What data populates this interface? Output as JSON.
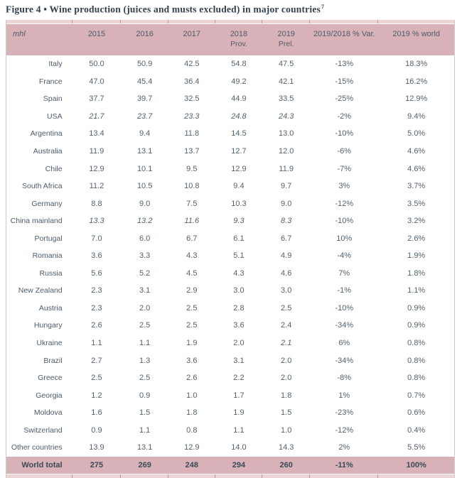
{
  "title": "Figure 4 • Wine production (juices and musts excluded) in major countries",
  "title_footnote_mark": "7",
  "table": {
    "unit_label": "mhl",
    "columns": [
      {
        "label": "2015",
        "sublabel": ""
      },
      {
        "label": "2016",
        "sublabel": ""
      },
      {
        "label": "2017",
        "sublabel": ""
      },
      {
        "label": "2018",
        "sublabel": "Prov."
      },
      {
        "label": "2019",
        "sublabel": "Prel."
      },
      {
        "label": "2019/2018 % Var.",
        "sublabel": ""
      },
      {
        "label": "2019 % world",
        "sublabel": ""
      }
    ],
    "rows": [
      {
        "country": "Italy",
        "values": [
          "50.0",
          "50.9",
          "42.5",
          "54.8",
          "47.5"
        ],
        "italics": [
          false,
          false,
          false,
          false,
          false
        ],
        "var": "-13%",
        "world": "18.3%"
      },
      {
        "country": "France",
        "values": [
          "47.0",
          "45.4",
          "36.4",
          "49.2",
          "42.1"
        ],
        "italics": [
          false,
          false,
          false,
          false,
          false
        ],
        "var": "-15%",
        "world": "16.2%"
      },
      {
        "country": "Spain",
        "values": [
          "37.7",
          "39.7",
          "32.5",
          "44.9",
          "33.5"
        ],
        "italics": [
          false,
          false,
          false,
          false,
          false
        ],
        "var": "-25%",
        "world": "12.9%"
      },
      {
        "country": "USA",
        "values": [
          "21.7",
          "23.7",
          "23.3",
          "24.8",
          "24.3"
        ],
        "italics": [
          true,
          true,
          true,
          true,
          true
        ],
        "var": "-2%",
        "world": "9.4%"
      },
      {
        "country": "Argentina",
        "values": [
          "13.4",
          "9.4",
          "11.8",
          "14.5",
          "13.0"
        ],
        "italics": [
          false,
          false,
          false,
          false,
          false
        ],
        "var": "-10%",
        "world": "5.0%"
      },
      {
        "country": "Australia",
        "values": [
          "11.9",
          "13.1",
          "13.7",
          "12.7",
          "12.0"
        ],
        "italics": [
          false,
          false,
          false,
          false,
          false
        ],
        "var": "-6%",
        "world": "4.6%"
      },
      {
        "country": "Chile",
        "values": [
          "12.9",
          "10.1",
          "9.5",
          "12.9",
          "11.9"
        ],
        "italics": [
          false,
          false,
          false,
          false,
          false
        ],
        "var": "-7%",
        "world": "4.6%"
      },
      {
        "country": "South Africa",
        "values": [
          "11.2",
          "10.5",
          "10.8",
          "9.4",
          "9.7"
        ],
        "italics": [
          false,
          false,
          false,
          false,
          false
        ],
        "var": "3%",
        "world": "3.7%"
      },
      {
        "country": "Germany",
        "values": [
          "8.8",
          "9.0",
          "7.5",
          "10.3",
          "9.0"
        ],
        "italics": [
          false,
          false,
          false,
          false,
          false
        ],
        "var": "-12%",
        "world": "3.5%"
      },
      {
        "country": "China mainland",
        "values": [
          "13.3",
          "13.2",
          "11.6",
          "9.3",
          "8.3"
        ],
        "italics": [
          true,
          true,
          true,
          true,
          true
        ],
        "var": "-10%",
        "world": "3.2%"
      },
      {
        "country": "Portugal",
        "values": [
          "7.0",
          "6.0",
          "6.7",
          "6.1",
          "6.7"
        ],
        "italics": [
          false,
          false,
          false,
          false,
          false
        ],
        "var": "10%",
        "world": "2.6%"
      },
      {
        "country": "Romania",
        "values": [
          "3.6",
          "3.3",
          "4.3",
          "5.1",
          "4.9"
        ],
        "italics": [
          false,
          false,
          false,
          false,
          false
        ],
        "var": "-4%",
        "world": "1.9%"
      },
      {
        "country": "Russia",
        "values": [
          "5.6",
          "5.2",
          "4.5",
          "4.3",
          "4.6"
        ],
        "italics": [
          false,
          false,
          false,
          false,
          false
        ],
        "var": "7%",
        "world": "1.8%"
      },
      {
        "country": "New Zealand",
        "values": [
          "2.3",
          "3.1",
          "2.9",
          "3.0",
          "3.0"
        ],
        "italics": [
          false,
          false,
          false,
          false,
          false
        ],
        "var": "-1%",
        "world": "1.1%"
      },
      {
        "country": "Austria",
        "values": [
          "2.3",
          "2.0",
          "2.5",
          "2.8",
          "2.5"
        ],
        "italics": [
          false,
          false,
          false,
          false,
          false
        ],
        "var": "-10%",
        "world": "0.9%"
      },
      {
        "country": "Hungary",
        "values": [
          "2.6",
          "2.5",
          "2.5",
          "3.6",
          "2.4"
        ],
        "italics": [
          false,
          false,
          false,
          false,
          false
        ],
        "var": "-34%",
        "world": "0.9%"
      },
      {
        "country": "Ukraine",
        "values": [
          "1.1",
          "1.1",
          "1.9",
          "2.0",
          "2.1"
        ],
        "italics": [
          false,
          false,
          false,
          false,
          true
        ],
        "var": "6%",
        "world": "0.8%"
      },
      {
        "country": "Brazil",
        "values": [
          "2.7",
          "1.3",
          "3.6",
          "3.1",
          "2.0"
        ],
        "italics": [
          false,
          false,
          false,
          false,
          false
        ],
        "var": "-34%",
        "world": "0.8%"
      },
      {
        "country": "Greece",
        "values": [
          "2.5",
          "2.5",
          "2.6",
          "2.2",
          "2.0"
        ],
        "italics": [
          false,
          false,
          false,
          false,
          false
        ],
        "var": "-8%",
        "world": "0.8%"
      },
      {
        "country": "Georgia",
        "values": [
          "1.2",
          "0.9",
          "1.0",
          "1.7",
          "1.8"
        ],
        "italics": [
          false,
          false,
          false,
          false,
          false
        ],
        "var": "1%",
        "world": "0.7%"
      },
      {
        "country": "Moldova",
        "values": [
          "1.6",
          "1.5",
          "1.8",
          "1.9",
          "1.5"
        ],
        "italics": [
          false,
          false,
          false,
          false,
          false
        ],
        "var": "-23%",
        "world": "0.6%"
      },
      {
        "country": "Switzerland",
        "values": [
          "0.9",
          "1.1",
          "0.8",
          "1.1",
          "1.0"
        ],
        "italics": [
          false,
          false,
          false,
          false,
          false
        ],
        "var": "-12%",
        "world": "0.4%"
      },
      {
        "country": "Other countries",
        "values": [
          "13.9",
          "13.1",
          "12.9",
          "14.0",
          "14.3"
        ],
        "italics": [
          false,
          false,
          false,
          false,
          false
        ],
        "var": "2%",
        "world": "5.5%"
      }
    ],
    "total": {
      "label": "World total",
      "values": [
        "275",
        "269",
        "248",
        "294",
        "260"
      ],
      "var": "-11%",
      "world": "100%"
    }
  },
  "colors": {
    "header_pink": "#d8b2b8",
    "edge_strip_pink": "#ecd4d7",
    "edge_divider": "#c4939b",
    "title_text": "#323f4c",
    "body_text": "#53626d",
    "table_border": "#cbcbcb"
  }
}
